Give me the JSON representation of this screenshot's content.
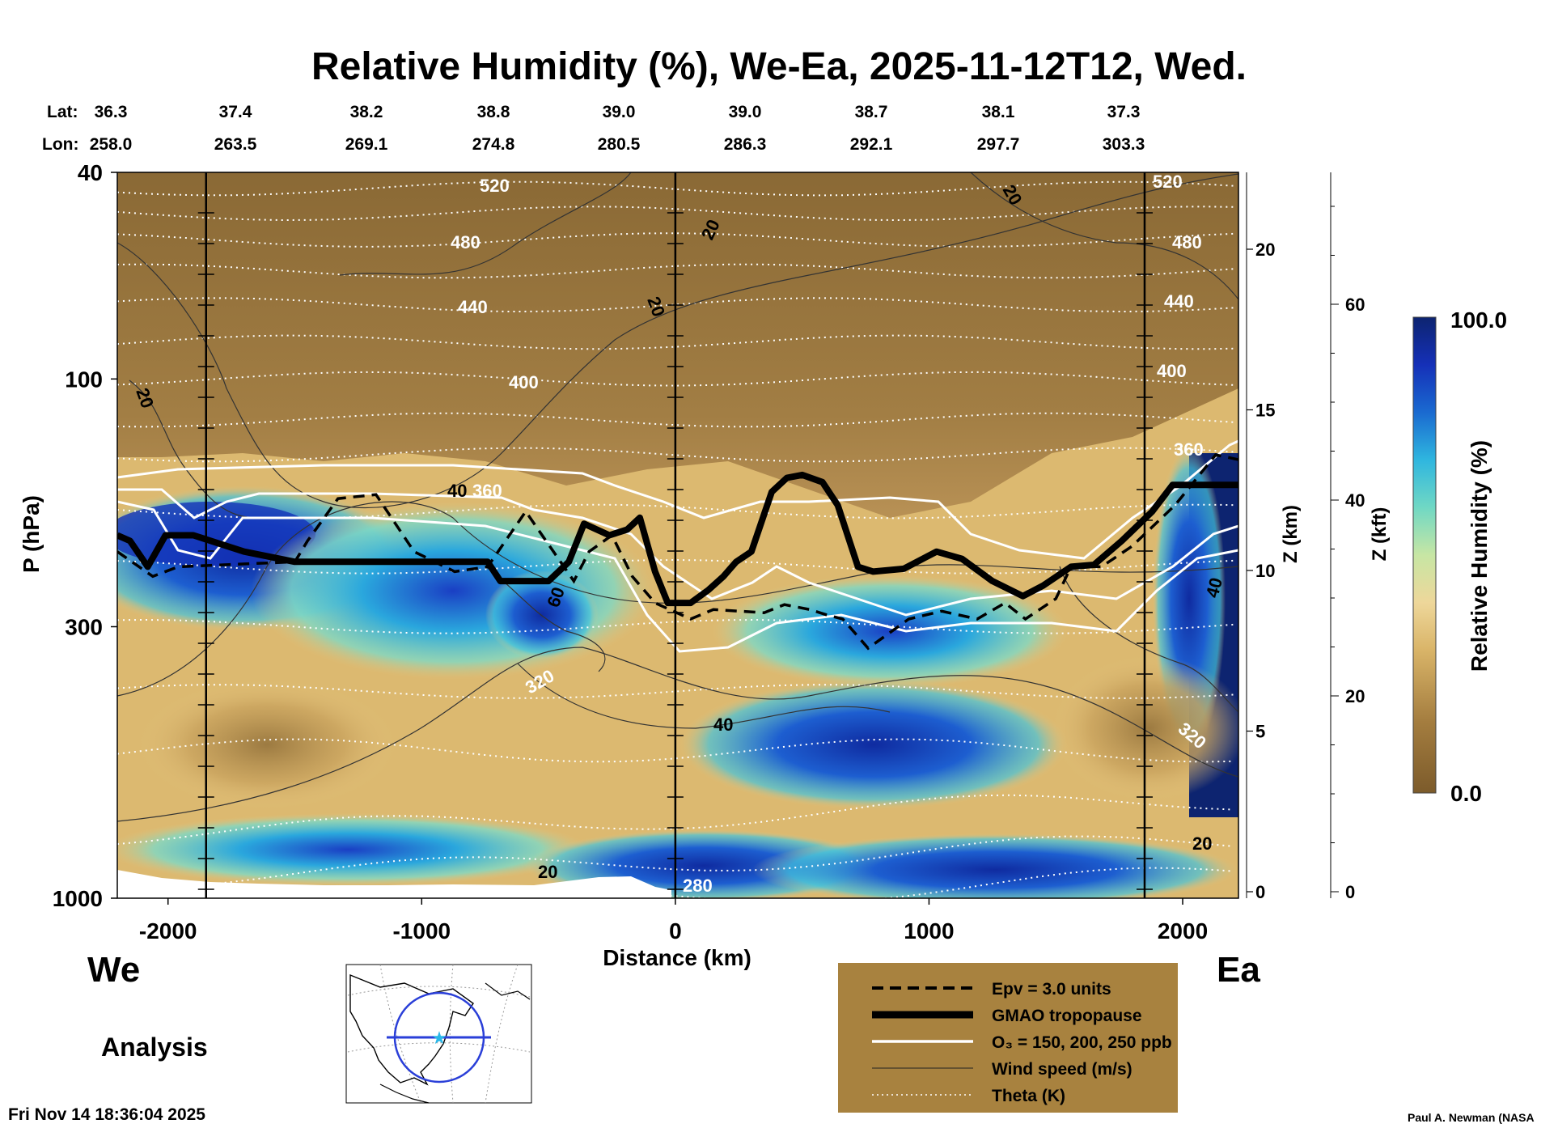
{
  "chart_data": {
    "type": "heatmap",
    "title": "Relative Humidity (%), We-Ea, 2025-11-12T12, Wed.",
    "xlabel": "Distance (km)",
    "ylabel": "P (hPa)",
    "xlim": [
      -2200,
      2220
    ],
    "ylim_hpa": [
      1000,
      40
    ],
    "y_scale": "log",
    "x_ticks": [
      -2000,
      -1000,
      0,
      1000,
      2000
    ],
    "y_ticks": [
      40,
      100,
      300,
      1000
    ],
    "lat_label": "Lat:",
    "lon_label": "Lon:",
    "lat": [
      "36.3",
      "37.4",
      "38.2",
      "38.8",
      "39.0",
      "39.0",
      "38.7",
      "38.1",
      "37.3"
    ],
    "lon": [
      "258.0",
      "263.5",
      "269.1",
      "274.8",
      "280.5",
      "286.3",
      "292.1",
      "297.7",
      "303.3"
    ],
    "z_km_label": "Z (km)",
    "z_km_ticks": [
      0,
      5,
      10,
      15,
      20
    ],
    "z_kft_label": "Z (kft)",
    "z_kft_ticks": [
      0,
      20,
      40,
      60
    ],
    "vertical_markers_km": [
      -1850,
      0,
      1850
    ],
    "colorbar": {
      "label": "Relative Humidity (%)",
      "min_label": "0.0",
      "max_label": "100.0",
      "range": [
        0,
        100
      ]
    },
    "theta_levels": [
      "280",
      "320",
      "360",
      "400",
      "440",
      "480",
      "520"
    ],
    "wind_speed_levels": [
      "20",
      "40",
      "60"
    ],
    "west_label": "We",
    "east_label": "Ea",
    "tropopause_hpa": [
      [
        -2200,
        200
      ],
      [
        -2150,
        205
      ],
      [
        -2080,
        230
      ],
      [
        -2010,
        200
      ],
      [
        -1900,
        200
      ],
      [
        -1700,
        215
      ],
      [
        -1500,
        225
      ],
      [
        -1100,
        225
      ],
      [
        -740,
        225
      ],
      [
        -690,
        245
      ],
      [
        -500,
        245
      ],
      [
        -420,
        225
      ],
      [
        -360,
        190
      ],
      [
        -310,
        195
      ],
      [
        -260,
        200
      ],
      [
        -190,
        195
      ],
      [
        -140,
        185
      ],
      [
        -80,
        235
      ],
      [
        -30,
        270
      ],
      [
        60,
        270
      ],
      [
        130,
        255
      ],
      [
        190,
        240
      ],
      [
        240,
        225
      ],
      [
        300,
        215
      ],
      [
        380,
        165
      ],
      [
        440,
        155
      ],
      [
        500,
        153
      ],
      [
        580,
        158
      ],
      [
        640,
        175
      ],
      [
        720,
        230
      ],
      [
        780,
        235
      ],
      [
        900,
        232
      ],
      [
        1030,
        215
      ],
      [
        1130,
        222
      ],
      [
        1250,
        245
      ],
      [
        1370,
        262
      ],
      [
        1450,
        250
      ],
      [
        1560,
        230
      ],
      [
        1650,
        228
      ],
      [
        1760,
        205
      ],
      [
        1880,
        180
      ],
      [
        1960,
        160
      ],
      [
        2220,
        160
      ]
    ],
    "epv_hpa": [
      [
        -2200,
        215
      ],
      [
        -2060,
        240
      ],
      [
        -1960,
        230
      ],
      [
        -1500,
        225
      ],
      [
        -1450,
        205
      ],
      [
        -1330,
        170
      ],
      [
        -1180,
        167
      ],
      [
        -1030,
        215
      ],
      [
        -870,
        235
      ],
      [
        -740,
        230
      ],
      [
        -590,
        180
      ],
      [
        -400,
        245
      ],
      [
        -340,
        215
      ],
      [
        -250,
        200
      ],
      [
        -170,
        240
      ],
      [
        -80,
        270
      ],
      [
        60,
        290
      ],
      [
        150,
        278
      ],
      [
        350,
        282
      ],
      [
        430,
        272
      ],
      [
        530,
        278
      ],
      [
        600,
        285
      ],
      [
        660,
        290
      ],
      [
        760,
        330
      ],
      [
        920,
        290
      ],
      [
        1050,
        280
      ],
      [
        1190,
        290
      ],
      [
        1300,
        270
      ],
      [
        1380,
        290
      ],
      [
        1500,
        265
      ],
      [
        1560,
        230
      ],
      [
        1680,
        230
      ],
      [
        1800,
        210
      ],
      [
        1970,
        175
      ],
      [
        2130,
        140
      ],
      [
        2220,
        143
      ]
    ],
    "legend": [
      {
        "label": "Epv = 3.0 units",
        "style": "dashed"
      },
      {
        "label": "GMAO tropopause",
        "style": "thick"
      },
      {
        "label": "O₃ = 150, 200, 250 ppb",
        "style": "white"
      },
      {
        "label": "Wind speed (m/s)",
        "style": "thin"
      },
      {
        "label": "Theta (K)",
        "style": "dotted"
      }
    ]
  },
  "panel": {
    "analysis_label": "Analysis",
    "timestamp": "Fri Nov 14 18:36:04 2025",
    "credit": "Paul A. Newman (NASA"
  },
  "colors": {
    "dry": "#8b6a3a",
    "moist": "#35c3d8",
    "saturated": "#0d2c8c",
    "legend_bg": "#a8823f"
  },
  "icons": {
    "inset_map": "north-america-map-icon"
  }
}
